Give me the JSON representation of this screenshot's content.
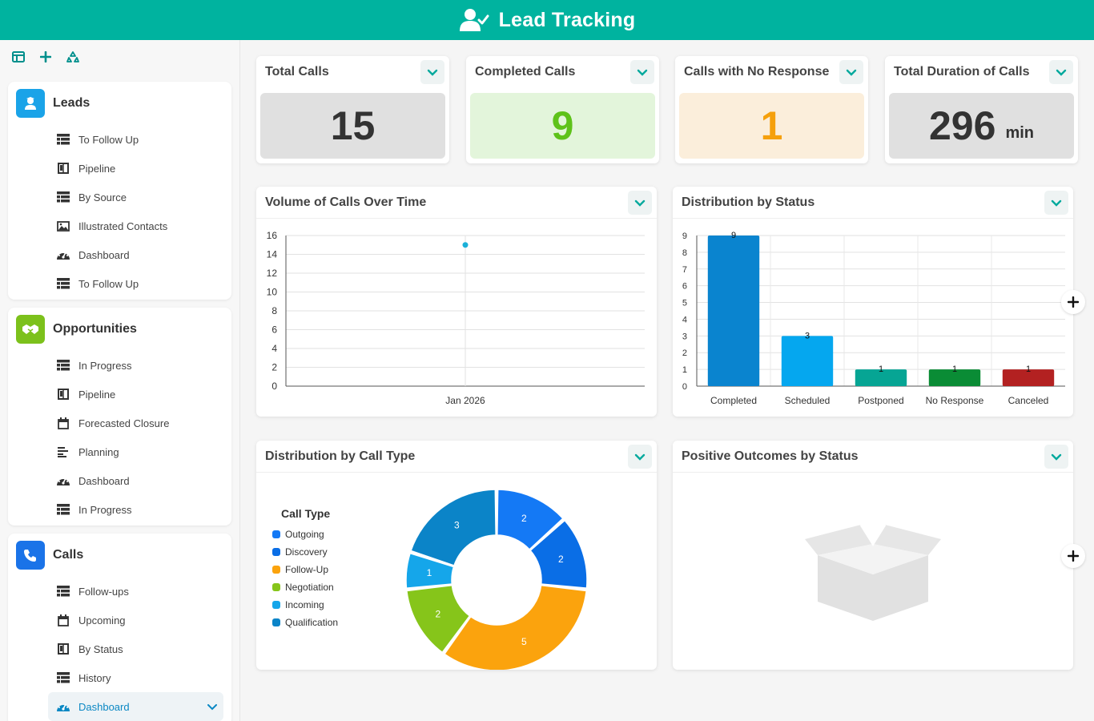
{
  "app": {
    "title": "Lead Tracking"
  },
  "sidebar": {
    "groups": [
      {
        "title": "Leads",
        "color": "#1aa3e8",
        "items": [
          {
            "label": "To Follow Up",
            "icon": "table-icon"
          },
          {
            "label": "Pipeline",
            "icon": "kanban-icon"
          },
          {
            "label": "By Source",
            "icon": "table-icon"
          },
          {
            "label": "Illustrated Contacts",
            "icon": "image-icon"
          },
          {
            "label": "Dashboard",
            "icon": "gauge-icon"
          },
          {
            "label": "To Follow Up",
            "icon": "table-icon"
          }
        ]
      },
      {
        "title": "Opportunities",
        "color": "#7cc11b",
        "items": [
          {
            "label": "In Progress",
            "icon": "table-icon"
          },
          {
            "label": "Pipeline",
            "icon": "kanban-icon"
          },
          {
            "label": "Forecasted Closure",
            "icon": "calendar-icon"
          },
          {
            "label": "Planning",
            "icon": "gantt-icon"
          },
          {
            "label": "Dashboard",
            "icon": "gauge-icon"
          },
          {
            "label": "In Progress",
            "icon": "table-icon"
          }
        ]
      },
      {
        "title": "Calls",
        "color": "#1a73e8",
        "items": [
          {
            "label": "Follow-ups",
            "icon": "table-icon"
          },
          {
            "label": "Upcoming",
            "icon": "calendar-icon"
          },
          {
            "label": "By Status",
            "icon": "kanban-icon"
          },
          {
            "label": "History",
            "icon": "table-icon"
          },
          {
            "label": "Dashboard",
            "icon": "gauge-icon",
            "active": true
          }
        ]
      }
    ]
  },
  "kpis": [
    {
      "title": "Total Calls",
      "value": "15",
      "unit": "",
      "bg": "#e0e0e0",
      "color": "#333333"
    },
    {
      "title": "Completed Calls",
      "value": "9",
      "unit": "",
      "bg": "#e3f5db",
      "color": "#5ec21a"
    },
    {
      "title": "Calls with No Response",
      "value": "1",
      "unit": "",
      "bg": "#fbeedb",
      "color": "#f5a00c"
    },
    {
      "title": "Total Duration of Calls",
      "value": "296",
      "unit": "min",
      "bg": "#e0e0e0",
      "color": "#333333"
    }
  ],
  "panels": {
    "volume": {
      "title": "Volume of Calls Over Time"
    },
    "status": {
      "title": "Distribution by Status"
    },
    "calltype": {
      "title": "Distribution by Call Type"
    },
    "outcomes": {
      "title": "Positive Outcomes by Status"
    }
  },
  "chart_data": [
    {
      "type": "scatter",
      "title": "Volume of Calls Over Time",
      "x": [
        "Jan 2026"
      ],
      "series": [
        {
          "values": [
            15
          ]
        }
      ],
      "ylim": [
        0,
        16
      ],
      "yticks": [
        0,
        2,
        4,
        6,
        8,
        10,
        12,
        14,
        16
      ],
      "point_color": "#1ab0d8",
      "grid": true
    },
    {
      "type": "bar",
      "title": "Distribution by Status",
      "categories": [
        "Completed",
        "Scheduled",
        "Postponed",
        "No Response",
        "Canceled"
      ],
      "values": [
        9,
        3,
        1,
        1,
        1
      ],
      "colors": [
        "#0a84cf",
        "#05a7ef",
        "#06a594",
        "#0a8c35",
        "#b32121"
      ],
      "ylim": [
        0,
        9
      ],
      "yticks": [
        0,
        1,
        2,
        3,
        4,
        5,
        6,
        7,
        8,
        9
      ],
      "grid": true
    },
    {
      "type": "pie",
      "donut": true,
      "title": "Distribution by Call Type",
      "legend_title": "Call Type",
      "legend_position": "left",
      "slices": [
        {
          "label": "Outgoing",
          "value": 2,
          "color": "#1479f5"
        },
        {
          "label": "Discovery",
          "value": 2,
          "color": "#0a6ee6"
        },
        {
          "label": "Follow-Up",
          "value": 5,
          "color": "#fba30d"
        },
        {
          "label": "Negotiation",
          "value": 2,
          "color": "#86c51a"
        },
        {
          "label": "Incoming",
          "value": 1,
          "color": "#15a6ea"
        },
        {
          "label": "Qualification",
          "value": 3,
          "color": "#0b84c8"
        }
      ]
    }
  ]
}
